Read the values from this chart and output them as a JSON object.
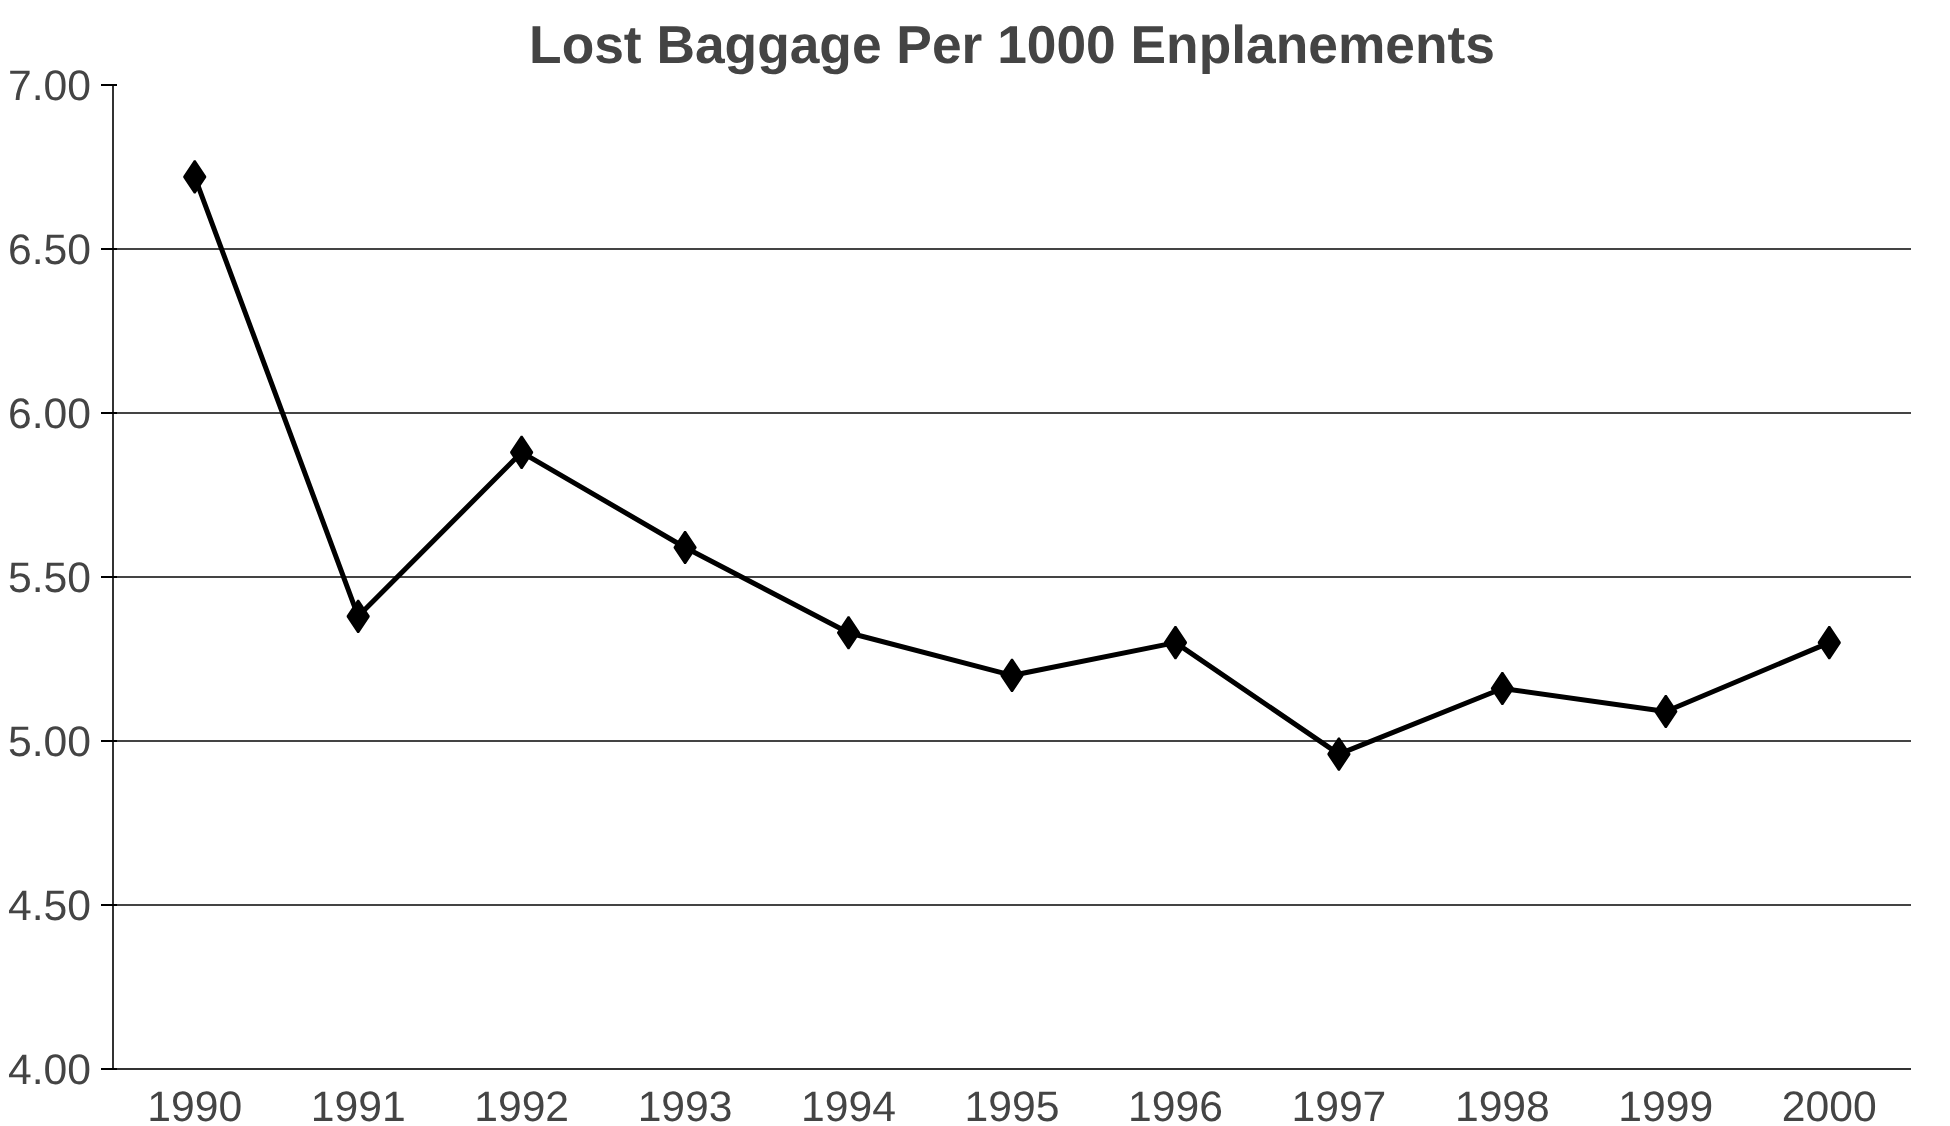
{
  "chart_data": {
    "type": "line",
    "title": "Lost Baggage Per 1000 Enplanements",
    "categories": [
      "1990",
      "1991",
      "1992",
      "1993",
      "1994",
      "1995",
      "1996",
      "1997",
      "1998",
      "1999",
      "2000"
    ],
    "series": [
      {
        "color": "#000000",
        "values": [
          6.72,
          5.38,
          5.88,
          5.59,
          5.33,
          5.2,
          5.3,
          4.96,
          5.16,
          5.09,
          5.3
        ]
      }
    ],
    "ylim": [
      4.0,
      7.0
    ],
    "yticks": [
      {
        "value": 4.0,
        "label": "4.00"
      },
      {
        "value": 4.5,
        "label": "4.50"
      },
      {
        "value": 5.0,
        "label": "5.00"
      },
      {
        "value": 5.5,
        "label": "5.50"
      },
      {
        "value": 6.0,
        "label": "6.00"
      },
      {
        "value": 6.5,
        "label": "6.50"
      },
      {
        "value": 7.0,
        "label": "7.00"
      }
    ],
    "grid": "y",
    "marker": "diamond",
    "line_style": "solid"
  }
}
